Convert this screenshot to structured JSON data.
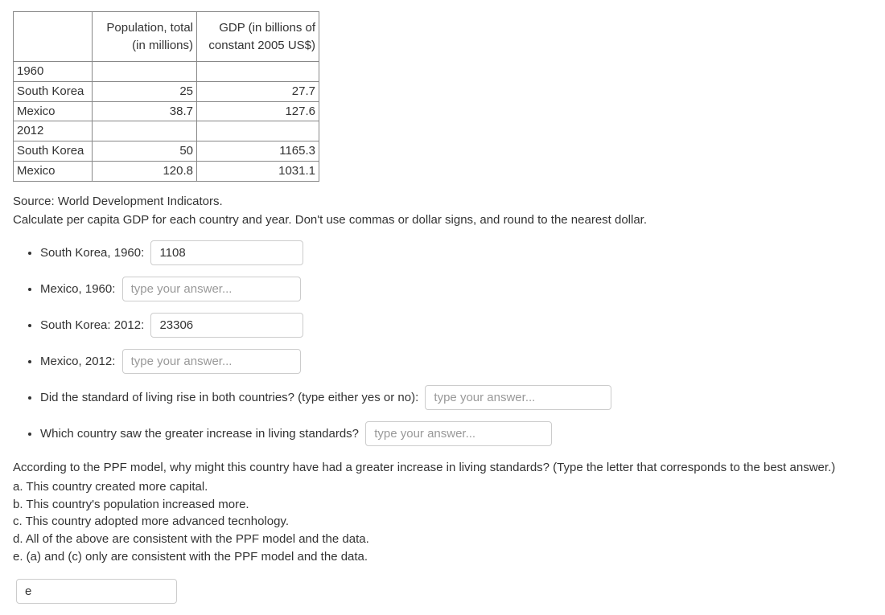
{
  "table": {
    "headers": {
      "col0": "",
      "col1": "Population, total (in millions)",
      "col2": "GDP (in billions of constant 2005 US$)"
    },
    "rows": [
      {
        "label": "1960",
        "c1": "",
        "c2": ""
      },
      {
        "label": "South Korea",
        "c1": "25",
        "c2": "27.7"
      },
      {
        "label": "Mexico",
        "c1": "38.7",
        "c2": "127.6"
      },
      {
        "label": "2012",
        "c1": "",
        "c2": ""
      },
      {
        "label": "South Korea",
        "c1": "50",
        "c2": "1165.3"
      },
      {
        "label": "Mexico",
        "c1": "120.8",
        "c2": "1031.1"
      }
    ]
  },
  "source_text": "Source:  World Development Indicators.",
  "prompt_text": "Calculate per capita GDP for each country and year. Don't use commas or dollar signs, and round to the nearest dollar.",
  "questions": {
    "q1": {
      "label": "South Korea, 1960:",
      "value": "1108"
    },
    "q2": {
      "label": "Mexico, 1960:",
      "placeholder": "type your answer..."
    },
    "q3": {
      "label": "South Korea: 2012:",
      "value": "23306"
    },
    "q4": {
      "label": "Mexico, 2012:",
      "placeholder": "type your answer..."
    },
    "q5": {
      "label": "Did the standard of living rise in both countries? (type either yes or no):",
      "placeholder": "type your answer..."
    },
    "q6": {
      "label": "Which country saw the greater increase in living standards?",
      "placeholder": "type your answer..."
    }
  },
  "footer_question": "According to the PPF model, why might this country have had a greater increase in living standards?  (Type the letter that corresponds to the best answer.)",
  "options": {
    "a": "a. This country created more capital.",
    "b": "b. This country's population increased more.",
    "c": "c. This country adopted more advanced tecnhology.",
    "d": "d.  All of the above are consistent with the PPF model and the data.",
    "e": "e.  (a) and (c) only are consistent with the PPF model and the data."
  },
  "final_answer": {
    "value": "e"
  },
  "colors": {
    "text": "#333333",
    "border": "#888888",
    "input_border": "#cccccc",
    "placeholder": "#999999",
    "background": "#ffffff"
  }
}
